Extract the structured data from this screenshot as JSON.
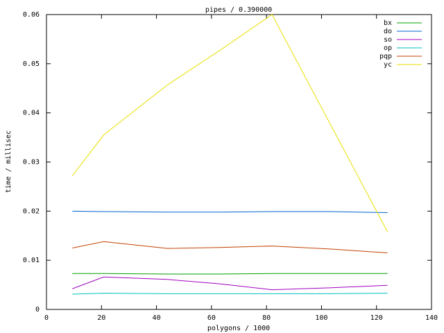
{
  "chart_data": {
    "type": "line",
    "title": "pipes / 0.390000",
    "x_label": "polygons / 1000",
    "y_label": "time / millisec",
    "x": [
      9.4,
      20.8,
      44,
      63,
      82,
      103,
      124
    ],
    "series": [
      {
        "name": "bx",
        "color": "#00a000",
        "values": [
          0.0073,
          0.0073,
          0.0072,
          0.0072,
          0.0073,
          0.0073,
          0.0073
        ]
      },
      {
        "name": "do",
        "color": "#0060d0",
        "values": [
          0.02,
          0.0199,
          0.0198,
          0.0198,
          0.0199,
          0.0199,
          0.0197
        ]
      },
      {
        "name": "so",
        "color": "#a000c0",
        "values": [
          0.0042,
          0.0066,
          0.0061,
          0.0052,
          0.004,
          0.0044,
          0.0049
        ]
      },
      {
        "name": "op",
        "color": "#00c0c0",
        "values": [
          0.0031,
          0.0033,
          0.0032,
          0.0032,
          0.0032,
          0.0032,
          0.0033
        ]
      },
      {
        "name": "pqp",
        "color": "#c04000",
        "values": [
          0.0125,
          0.0138,
          0.0124,
          0.0126,
          0.0129,
          0.0123,
          0.0115
        ]
      },
      {
        "name": "yc",
        "color": "#e8e000",
        "values": [
          0.0272,
          0.0355,
          0.0457,
          0.0527,
          0.06,
          0.0379,
          0.0158
        ]
      }
    ],
    "xlim": [
      0,
      140
    ],
    "xticks": [
      0,
      20,
      40,
      60,
      80,
      100,
      120,
      140
    ],
    "ylim": [
      0,
      0.06
    ],
    "yticks": [
      0,
      0.01,
      0.02,
      0.03,
      0.04,
      0.05,
      0.06
    ],
    "legend": "top-right"
  }
}
